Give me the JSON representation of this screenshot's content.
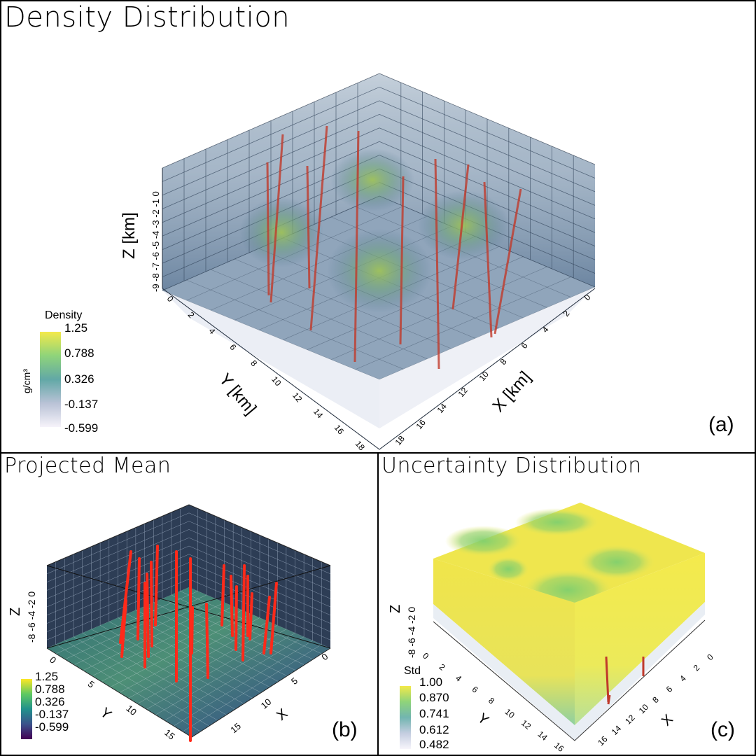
{
  "chart_data": [
    {
      "id": "a",
      "type": "volume-3d",
      "title": "Density Distribution",
      "panel_label": "(a)",
      "xlabel": "X [km]",
      "ylabel": "Y [km]",
      "zlabel": "Z [km]",
      "x_ticks": [
        "0",
        "2",
        "4",
        "6",
        "8",
        "10",
        "12",
        "14",
        "16",
        "18"
      ],
      "y_ticks": [
        "0",
        "2",
        "4",
        "6",
        "8",
        "10",
        "12",
        "14",
        "16",
        "18"
      ],
      "z_ticks": [
        "-9",
        "-8",
        "-7",
        "-6",
        "-5",
        "-4",
        "-3",
        "-2",
        "-1",
        "0"
      ],
      "colorbar": {
        "title": "Density",
        "unit": "g/cm³",
        "ticks": [
          "1.25",
          "0.788",
          "0.326",
          "-0.137",
          "-0.599"
        ],
        "range": [
          -0.599,
          1.25
        ]
      }
    },
    {
      "id": "b",
      "type": "surface-3d",
      "title": "Projected Mean",
      "panel_label": "(b)",
      "xlabel": "X",
      "ylabel": "Y",
      "zlabel": "Z",
      "x_ticks": [
        "0",
        "5",
        "10",
        "15"
      ],
      "y_ticks": [
        "0",
        "5",
        "10",
        "15"
      ],
      "z_ticks": [
        "-8",
        "-6",
        "-4",
        "-2",
        "0"
      ],
      "colorbar": {
        "title": "",
        "ticks": [
          "1.25",
          "0.788",
          "0.326",
          "-0.137",
          "-0.599"
        ],
        "range": [
          -0.599,
          1.25
        ]
      }
    },
    {
      "id": "c",
      "type": "volume-3d",
      "title": "Uncertainty Distribution",
      "panel_label": "(c)",
      "xlabel": "X",
      "ylabel": "Y",
      "zlabel": "Z",
      "x_ticks": [
        "0",
        "2",
        "4",
        "6",
        "8",
        "10",
        "12",
        "14",
        "16"
      ],
      "y_ticks": [
        "0",
        "2",
        "4",
        "6",
        "8",
        "10",
        "12",
        "14",
        "16"
      ],
      "z_ticks": [
        "-8",
        "-6",
        "-4",
        "-2",
        "0"
      ],
      "colorbar": {
        "title": "Std",
        "ticks": [
          "1.00",
          "0.870",
          "0.741",
          "0.612",
          "0.482"
        ],
        "range": [
          0.482,
          1.0
        ]
      }
    }
  ],
  "colors": {
    "viridis_top": "#f0e442",
    "viridis_mid": "#5ec46a",
    "volume_fill": "#4a6f8f",
    "well": "#c0392b",
    "well_bright": "#ff2a1a"
  }
}
